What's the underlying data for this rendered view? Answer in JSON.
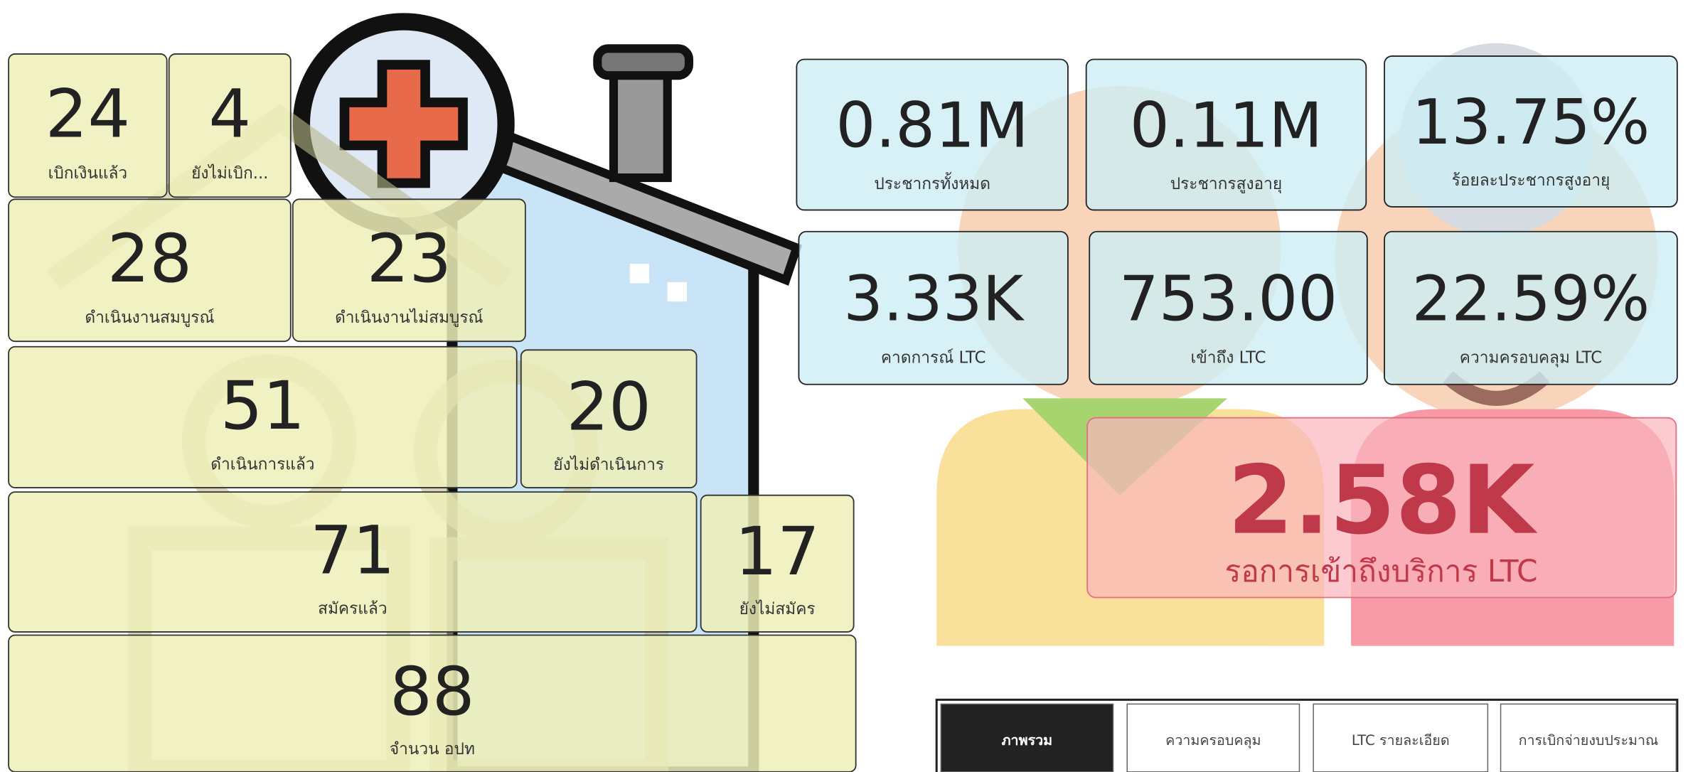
{
  "left_cards": [
    {
      "value": 24,
      "label": "เบิกเงินแล้ว"
    },
    {
      "value": 4,
      "label": "ยังไม่เบิก..."
    },
    {
      "value": 28,
      "label": "ดำเนินงานสมบูรณ์"
    },
    {
      "value": 23,
      "label": "ดำเนินงานไม่สมบูรณ์"
    },
    {
      "value": 51,
      "label": "ดำเนินการแล้ว"
    },
    {
      "value": 20,
      "label": "ยังไม่ดำเนินการ"
    },
    {
      "value": 71,
      "label": "สมัครแล้ว"
    },
    {
      "value": 17,
      "label": "ยังไม่สมัคร"
    },
    {
      "value": 88,
      "label": "จำนวน อปท"
    }
  ],
  "right_cards": [
    {
      "value": "0.81M",
      "label": "ประชากรทั้งหมด"
    },
    {
      "value": "0.11M",
      "label": "ประชากรสูงอายุ"
    },
    {
      "value": "13.75%",
      "label": "ร้อยละประชากรสูงอายุ"
    },
    {
      "value": "3.33K",
      "label": "คาดการณ์ LTC"
    },
    {
      "value": "753.00",
      "label": "เข้าถึง LTC"
    },
    {
      "value": "22.59%",
      "label": "ความครอบคลุม LTC"
    }
  ],
  "highlight": {
    "value": "2.58K",
    "label": "รอการเข้าถึงบริการ LTC"
  },
  "tabs": [
    "ภาพรวม",
    "ความครอบคลุม",
    "LTC รายละเอียด",
    "การเบิกจ่ายงบประมาณ"
  ]
}
